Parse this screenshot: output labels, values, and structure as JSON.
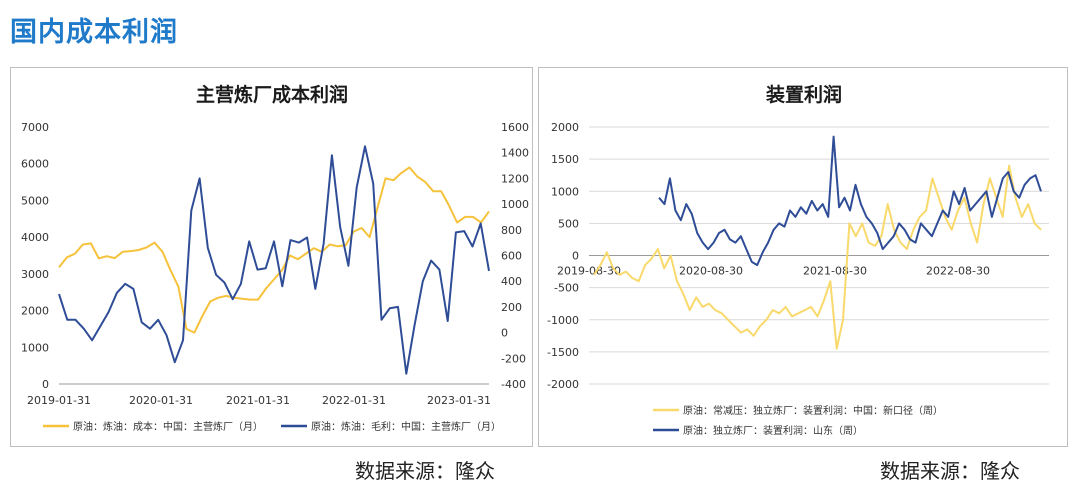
{
  "page": {
    "title": "国内成本利润"
  },
  "colors": {
    "yellow": "#f7c23b",
    "blue": "#2f4d97",
    "light_yellow": "#f9d96b",
    "title_blue": "#1f7ac9"
  },
  "sources": {
    "left": "数据来源：隆众",
    "right": "数据来源：隆众"
  },
  "chart_data": [
    {
      "type": "line",
      "title": "主营炼厂成本利润",
      "x_ticks": [
        "2019-01-31",
        "2020-01-31",
        "2021-01-31",
        "2022-01-31",
        "2023-01-31"
      ],
      "y_left": {
        "min": 0,
        "max": 7000,
        "step": 1000,
        "ticks": [
          "0",
          "1000",
          "2000",
          "3000",
          "4000",
          "5000",
          "6000",
          "7000"
        ]
      },
      "y_right": {
        "min": -400,
        "max": 1600,
        "step": 200,
        "ticks": [
          "-400",
          "-200",
          "0",
          "200",
          "400",
          "600",
          "800",
          "1000",
          "1200",
          "1400",
          "1600"
        ]
      },
      "series": [
        {
          "name": "原油：炼油：成本：中国：主营炼厂（月）",
          "axis": "left",
          "color": "#f7c23b",
          "values": [
            3180,
            3450,
            3550,
            3800,
            3830,
            3420,
            3480,
            3430,
            3600,
            3620,
            3650,
            3720,
            3850,
            3600,
            3100,
            2650,
            1500,
            1400,
            1850,
            2250,
            2350,
            2400,
            2350,
            2320,
            2300,
            2300,
            2600,
            2850,
            3100,
            3500,
            3400,
            3550,
            3700,
            3600,
            3800,
            3750,
            3780,
            4150,
            4250,
            4000,
            4800,
            5600,
            5550,
            5750,
            5900,
            5650,
            5500,
            5250,
            5250,
            4850,
            4400,
            4550,
            4550,
            4400,
            4700
          ]
        },
        {
          "name": "原油：炼油：毛利：中国：主营炼厂（月）",
          "axis": "right",
          "color": "#2f4d97",
          "values": [
            300,
            100,
            100,
            30,
            -60,
            50,
            160,
            310,
            380,
            340,
            80,
            30,
            100,
            -20,
            -230,
            -60,
            950,
            1200,
            660,
            450,
            390,
            260,
            380,
            710,
            490,
            500,
            710,
            360,
            720,
            700,
            740,
            340,
            690,
            1380,
            820,
            520,
            1130,
            1450,
            1160,
            100,
            190,
            200,
            -320,
            60,
            400,
            560,
            490,
            90,
            780,
            790,
            670,
            850,
            480
          ]
        }
      ],
      "legend_position": "bottom"
    },
    {
      "type": "line",
      "title": "装置利润",
      "x_ticks": [
        "2019-08-30",
        "2020-08-30",
        "2021-08-30",
        "2022-08-30"
      ],
      "y": {
        "min": -2000,
        "max": 2000,
        "step": 500,
        "ticks": [
          "-2000",
          "-1500",
          "-1000",
          "-500",
          "0",
          "500",
          "1000",
          "1500",
          "2000"
        ]
      },
      "series": [
        {
          "name": "原油：常减压：独立炼厂：装置利润：中国：新口径（周）",
          "color": "#f9d96b",
          "values": [
            -300,
            -150,
            50,
            -200,
            -300,
            -250,
            -350,
            -400,
            -150,
            -50,
            100,
            -200,
            0,
            -400,
            -600,
            -850,
            -650,
            -800,
            -750,
            -850,
            -900,
            -1000,
            -1100,
            -1200,
            -1150,
            -1250,
            -1100,
            -1000,
            -850,
            -900,
            -800,
            -950,
            -900,
            -850,
            -800,
            -950,
            -700,
            -400,
            -1450,
            -1000,
            500,
            300,
            500,
            200,
            150,
            300,
            800,
            400,
            200,
            100,
            400,
            600,
            700,
            1200,
            900,
            600,
            400,
            700,
            900,
            500,
            200,
            800,
            1200,
            900,
            600,
            1400,
            900,
            600,
            800,
            500,
            400
          ]
        },
        {
          "name": "原油：独立炼厂：装置利润：山东（周）",
          "color": "#2f4d97",
          "values": [
            900,
            800,
            1200,
            700,
            550,
            800,
            650,
            350,
            200,
            100,
            200,
            350,
            400,
            250,
            200,
            300,
            100,
            -100,
            -150,
            50,
            200,
            400,
            500,
            450,
            700,
            600,
            750,
            650,
            850,
            700,
            800,
            600,
            1850,
            750,
            900,
            700,
            1100,
            800,
            600,
            500,
            350,
            100,
            200,
            300,
            500,
            400,
            250,
            200,
            500,
            400,
            300,
            500,
            700,
            600,
            1000,
            800,
            1050,
            700,
            800,
            900,
            1000,
            600,
            900,
            1200,
            1300,
            1000,
            900,
            1100,
            1200,
            1250,
            1000
          ]
        }
      ],
      "legend_position": "bottom"
    }
  ]
}
